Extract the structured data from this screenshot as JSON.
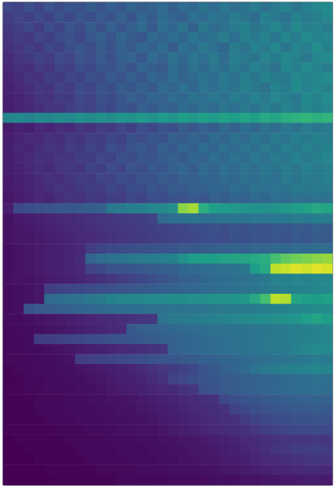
{
  "chart_data": {
    "type": "heatmap",
    "tick_labels": false,
    "color_range": [
      0,
      100
    ],
    "cells": [
      [
        22,
        20,
        24,
        21,
        26,
        23,
        27,
        25,
        29,
        26,
        30,
        28,
        32,
        29,
        31,
        34,
        30,
        35,
        33,
        38,
        34,
        40,
        36,
        38,
        42,
        37,
        41,
        44,
        39,
        43,
        46,
        48
      ],
      [
        18,
        21,
        19,
        23,
        20,
        25,
        22,
        27,
        24,
        28,
        26,
        31,
        27,
        33,
        29,
        35,
        32,
        30,
        37,
        34,
        39,
        36,
        42,
        38,
        35,
        44,
        40,
        37,
        45,
        41,
        43,
        47
      ],
      [
        17,
        19,
        22,
        18,
        24,
        21,
        26,
        23,
        29,
        25,
        31,
        27,
        30,
        34,
        28,
        36,
        33,
        38,
        31,
        40,
        35,
        37,
        41,
        44,
        38,
        42,
        46,
        40,
        47,
        43,
        45,
        42
      ],
      [
        15,
        18,
        16,
        21,
        19,
        23,
        25,
        22,
        27,
        30,
        26,
        32,
        29,
        27,
        34,
        31,
        36,
        33,
        39,
        35,
        38,
        42,
        36,
        43,
        40,
        45,
        39,
        46,
        42,
        48,
        44,
        46
      ],
      [
        14,
        16,
        19,
        17,
        22,
        20,
        24,
        27,
        23,
        29,
        26,
        31,
        28,
        33,
        30,
        35,
        29,
        37,
        34,
        40,
        36,
        33,
        42,
        38,
        44,
        41,
        47,
        39,
        45,
        43,
        49,
        44
      ],
      [
        12,
        15,
        17,
        20,
        18,
        23,
        21,
        26,
        24,
        28,
        25,
        30,
        32,
        27,
        34,
        31,
        37,
        33,
        39,
        36,
        41,
        35,
        43,
        40,
        38,
        45,
        42,
        47,
        44,
        40,
        46,
        48
      ],
      [
        11,
        14,
        13,
        18,
        16,
        21,
        19,
        24,
        22,
        27,
        25,
        29,
        26,
        32,
        30,
        28,
        35,
        32,
        37,
        34,
        39,
        36,
        42,
        38,
        44,
        41,
        37,
        46,
        43,
        48,
        45,
        42
      ],
      [
        10,
        12,
        15,
        14,
        19,
        17,
        22,
        20,
        25,
        23,
        28,
        26,
        31,
        27,
        33,
        30,
        36,
        32,
        34,
        38,
        35,
        41,
        37,
        43,
        39,
        45,
        42,
        40,
        47,
        44,
        46,
        49
      ],
      [
        9,
        11,
        13,
        16,
        15,
        20,
        18,
        23,
        21,
        26,
        24,
        29,
        27,
        31,
        28,
        34,
        32,
        37,
        33,
        39,
        36,
        40,
        38,
        43,
        41,
        37,
        45,
        42,
        48,
        44,
        47,
        45
      ],
      [
        9,
        10,
        12,
        15,
        14,
        18,
        17,
        22,
        20,
        25,
        23,
        27,
        30,
        28,
        33,
        31,
        35,
        33,
        38,
        36,
        40,
        37,
        42,
        39,
        44,
        41,
        46,
        43,
        40,
        47,
        45,
        48
      ],
      [
        8,
        10,
        11,
        13,
        16,
        15,
        19,
        21,
        20,
        24,
        22,
        27,
        25,
        30,
        28,
        32,
        30,
        35,
        33,
        37,
        34,
        39,
        36,
        41,
        38,
        43,
        40,
        45,
        42,
        47,
        44,
        46
      ],
      [
        46,
        47,
        45,
        48,
        46,
        49,
        47,
        50,
        48,
        51,
        49,
        52,
        50,
        53,
        51,
        54,
        52,
        55,
        53,
        56,
        54,
        57,
        55,
        58,
        56,
        60,
        58,
        62,
        64,
        66,
        63,
        65
      ],
      [
        7,
        9,
        8,
        11,
        10,
        13,
        12,
        16,
        14,
        18,
        17,
        21,
        19,
        24,
        22,
        26,
        24,
        29,
        27,
        31,
        29,
        34,
        31,
        36,
        33,
        38,
        35,
        40,
        37,
        42,
        39,
        41
      ],
      [
        8,
        10,
        12,
        11,
        14,
        13,
        17,
        15,
        19,
        18,
        22,
        20,
        25,
        23,
        27,
        25,
        30,
        28,
        32,
        30,
        35,
        32,
        37,
        34,
        39,
        36,
        41,
        38,
        43,
        40,
        44,
        42
      ],
      [
        9,
        11,
        10,
        13,
        15,
        14,
        18,
        17,
        21,
        19,
        24,
        22,
        26,
        28,
        25,
        30,
        28,
        33,
        30,
        35,
        32,
        37,
        34,
        39,
        36,
        41,
        38,
        43,
        40,
        45,
        42,
        44
      ],
      [
        8,
        10,
        12,
        14,
        13,
        16,
        15,
        19,
        18,
        22,
        20,
        25,
        23,
        27,
        26,
        29,
        31,
        28,
        33,
        31,
        36,
        33,
        38,
        35,
        40,
        37,
        42,
        39,
        44,
        41,
        43,
        46
      ],
      [
        8,
        9,
        11,
        13,
        12,
        15,
        17,
        16,
        20,
        19,
        23,
        21,
        26,
        24,
        28,
        27,
        30,
        33,
        29,
        34,
        32,
        36,
        34,
        38,
        36,
        40,
        38,
        42,
        39,
        44,
        41,
        43
      ],
      [
        7,
        9,
        10,
        12,
        14,
        13,
        16,
        18,
        17,
        21,
        20,
        24,
        22,
        26,
        25,
        29,
        27,
        31,
        30,
        33,
        31,
        35,
        33,
        37,
        35,
        39,
        36,
        41,
        38,
        42,
        40,
        43
      ],
      [
        7,
        8,
        10,
        11,
        13,
        15,
        14,
        17,
        19,
        18,
        22,
        20,
        24,
        23,
        27,
        25,
        29,
        28,
        31,
        30,
        33,
        32,
        35,
        34,
        37,
        36,
        39,
        38,
        41,
        40,
        42,
        41
      ],
      [
        6,
        8,
        9,
        11,
        10,
        13,
        15,
        14,
        17,
        16,
        19,
        18,
        22,
        20,
        24,
        23,
        26,
        25,
        28,
        27,
        30,
        29,
        32,
        31,
        34,
        33,
        36,
        35,
        37,
        36,
        38,
        37
      ],
      [
        8,
        22,
        24,
        25,
        26,
        27,
        27,
        28,
        29,
        30,
        40,
        42,
        43,
        44,
        46,
        47,
        50,
        82,
        86,
        62,
        56,
        54,
        53,
        52,
        51,
        50,
        52,
        53,
        55,
        57,
        60,
        58
      ],
      [
        5,
        7,
        8,
        9,
        10,
        11,
        12,
        13,
        14,
        15,
        16,
        17,
        18,
        19,
        20,
        34,
        36,
        37,
        38,
        36,
        37,
        38,
        39,
        38,
        40,
        39,
        41,
        40,
        42,
        41,
        43,
        42
      ],
      [
        5,
        6,
        7,
        8,
        9,
        10,
        11,
        12,
        13,
        14,
        15,
        16,
        17,
        18,
        19,
        20,
        21,
        22,
        23,
        24,
        25,
        24,
        26,
        25,
        27,
        26,
        28,
        27,
        29,
        28,
        30,
        29
      ],
      [
        5,
        6,
        6,
        7,
        8,
        9,
        10,
        11,
        12,
        13,
        14,
        15,
        16,
        17,
        18,
        19,
        20,
        21,
        22,
        23,
        24,
        23,
        25,
        24,
        26,
        25,
        27,
        26,
        28,
        27,
        29,
        28
      ],
      [
        4,
        5,
        6,
        7,
        8,
        9,
        10,
        11,
        18,
        20,
        22,
        23,
        24,
        25,
        25,
        26,
        27,
        28,
        28,
        29,
        30,
        31,
        32,
        31,
        33,
        32,
        34,
        33,
        35,
        34,
        36,
        35
      ],
      [
        4,
        5,
        6,
        7,
        8,
        9,
        10,
        12,
        32,
        35,
        37,
        38,
        40,
        41,
        42,
        43,
        44,
        50,
        55,
        56,
        56,
        57,
        58,
        58,
        60,
        62,
        70,
        75,
        78,
        80,
        82,
        84
      ],
      [
        4,
        5,
        6,
        7,
        8,
        9,
        10,
        11,
        20,
        22,
        25,
        26,
        27,
        28,
        29,
        30,
        31,
        33,
        34,
        35,
        36,
        37,
        38,
        40,
        55,
        60,
        90,
        92,
        95,
        93,
        96,
        94
      ],
      [
        4,
        5,
        5,
        6,
        7,
        8,
        9,
        10,
        12,
        14,
        16,
        18,
        20,
        22,
        24,
        26,
        28,
        30,
        31,
        33,
        34,
        35,
        36,
        37,
        38,
        40,
        45,
        44,
        46,
        45,
        47,
        46
      ],
      [
        3,
        4,
        5,
        6,
        18,
        20,
        21,
        22,
        23,
        24,
        25,
        26,
        27,
        28,
        29,
        30,
        31,
        32,
        33,
        34,
        35,
        36,
        37,
        38,
        39,
        40,
        42,
        43,
        44,
        45,
        46,
        47
      ],
      [
        3,
        4,
        5,
        6,
        34,
        36,
        37,
        38,
        40,
        42,
        45,
        46,
        47,
        47,
        48,
        48,
        49,
        49,
        50,
        50,
        51,
        51,
        52,
        53,
        60,
        70,
        90,
        88,
        58,
        56,
        55,
        57
      ],
      [
        3,
        4,
        26,
        28,
        29,
        30,
        31,
        32,
        33,
        34,
        35,
        35,
        36,
        36,
        37,
        37,
        38,
        38,
        39,
        39,
        40,
        40,
        41,
        41,
        42,
        43,
        44,
        45,
        46,
        47,
        48,
        49
      ],
      [
        3,
        3,
        4,
        5,
        6,
        7,
        8,
        9,
        10,
        11,
        12,
        13,
        14,
        15,
        16,
        38,
        40,
        41,
        42,
        43,
        44,
        45,
        46,
        47,
        48,
        49,
        50,
        51,
        52,
        56,
        58,
        55
      ],
      [
        2,
        3,
        3,
        4,
        5,
        6,
        7,
        8,
        9,
        10,
        11,
        12,
        28,
        30,
        31,
        32,
        33,
        34,
        35,
        36,
        37,
        37,
        38,
        38,
        39,
        40,
        41,
        42,
        43,
        44,
        45,
        46
      ],
      [
        2,
        2,
        3,
        18,
        19,
        20,
        21,
        22,
        23,
        24,
        25,
        26,
        27,
        28,
        29,
        30,
        31,
        32,
        33,
        34,
        35,
        36,
        37,
        38,
        39,
        40,
        41,
        42,
        43,
        44,
        45,
        46
      ],
      [
        2,
        2,
        3,
        3,
        4,
        5,
        6,
        7,
        8,
        9,
        10,
        11,
        12,
        13,
        14,
        15,
        30,
        32,
        33,
        34,
        35,
        36,
        37,
        38,
        39,
        40,
        41,
        42,
        44,
        46,
        48,
        47
      ],
      [
        2,
        2,
        2,
        3,
        3,
        4,
        5,
        18,
        19,
        20,
        21,
        22,
        23,
        24,
        25,
        26,
        27,
        28,
        29,
        30,
        31,
        32,
        33,
        34,
        35,
        36,
        37,
        38,
        39,
        40,
        42,
        41
      ],
      [
        1,
        2,
        2,
        3,
        3,
        4,
        4,
        5,
        6,
        7,
        8,
        9,
        10,
        12,
        14,
        16,
        18,
        20,
        22,
        26,
        28,
        30,
        32,
        34,
        38,
        40,
        42,
        43,
        44,
        45,
        46,
        45
      ],
      [
        1,
        1,
        2,
        2,
        3,
        3,
        4,
        4,
        5,
        6,
        7,
        8,
        9,
        10,
        12,
        14,
        20,
        22,
        24,
        26,
        27,
        28,
        29,
        30,
        31,
        32,
        33,
        34,
        35,
        36,
        37,
        36
      ],
      [
        1,
        1,
        2,
        2,
        3,
        3,
        3,
        4,
        4,
        5,
        6,
        7,
        8,
        9,
        10,
        11,
        12,
        14,
        16,
        24,
        26,
        28,
        29,
        30,
        31,
        32,
        33,
        34,
        35,
        35,
        36,
        35
      ],
      [
        1,
        1,
        1,
        2,
        2,
        2,
        3,
        3,
        4,
        4,
        5,
        5,
        6,
        7,
        8,
        9,
        10,
        11,
        12,
        13,
        14,
        22,
        24,
        26,
        27,
        28,
        29,
        30,
        31,
        31,
        32,
        31
      ],
      [
        1,
        1,
        1,
        2,
        2,
        2,
        3,
        3,
        3,
        4,
        4,
        5,
        5,
        6,
        7,
        8,
        9,
        10,
        11,
        12,
        13,
        14,
        20,
        22,
        24,
        25,
        26,
        27,
        28,
        28,
        29,
        28
      ],
      [
        1,
        1,
        1,
        1,
        2,
        2,
        2,
        3,
        3,
        3,
        4,
        4,
        5,
        5,
        6,
        7,
        8,
        9,
        10,
        11,
        12,
        13,
        14,
        18,
        20,
        22,
        23,
        24,
        25,
        25,
        26,
        25
      ],
      [
        1,
        1,
        1,
        1,
        1,
        2,
        2,
        2,
        3,
        3,
        3,
        4,
        4,
        5,
        5,
        6,
        7,
        8,
        9,
        10,
        11,
        12,
        13,
        14,
        16,
        18,
        20,
        21,
        22,
        22,
        23,
        22
      ],
      [
        0,
        1,
        1,
        1,
        1,
        1,
        2,
        2,
        2,
        2,
        3,
        3,
        3,
        4,
        4,
        5,
        5,
        6,
        6,
        7,
        8,
        9,
        10,
        11,
        12,
        13,
        14,
        15,
        16,
        16,
        17,
        16
      ],
      [
        0,
        0,
        1,
        1,
        1,
        1,
        1,
        2,
        2,
        2,
        2,
        3,
        3,
        3,
        4,
        4,
        5,
        5,
        6,
        6,
        7,
        8,
        9,
        10,
        11,
        13,
        15,
        16,
        18,
        18,
        19,
        18
      ],
      [
        0,
        0,
        0,
        1,
        1,
        1,
        1,
        1,
        2,
        2,
        2,
        2,
        3,
        3,
        3,
        4,
        4,
        5,
        5,
        6,
        6,
        7,
        8,
        9,
        10,
        11,
        12,
        13,
        14,
        15,
        16,
        15
      ],
      [
        0,
        0,
        0,
        0,
        1,
        1,
        1,
        1,
        1,
        2,
        2,
        2,
        2,
        3,
        3,
        3,
        4,
        4,
        4,
        5,
        5,
        6,
        6,
        7,
        8,
        9,
        10,
        10,
        11,
        12,
        12,
        11
      ],
      [
        0,
        0,
        0,
        0,
        0,
        1,
        1,
        1,
        1,
        1,
        1,
        2,
        2,
        2,
        2,
        2,
        3,
        3,
        3,
        3,
        4,
        4,
        4,
        5,
        5,
        6,
        6,
        7,
        7,
        8,
        8,
        7
      ]
    ]
  }
}
